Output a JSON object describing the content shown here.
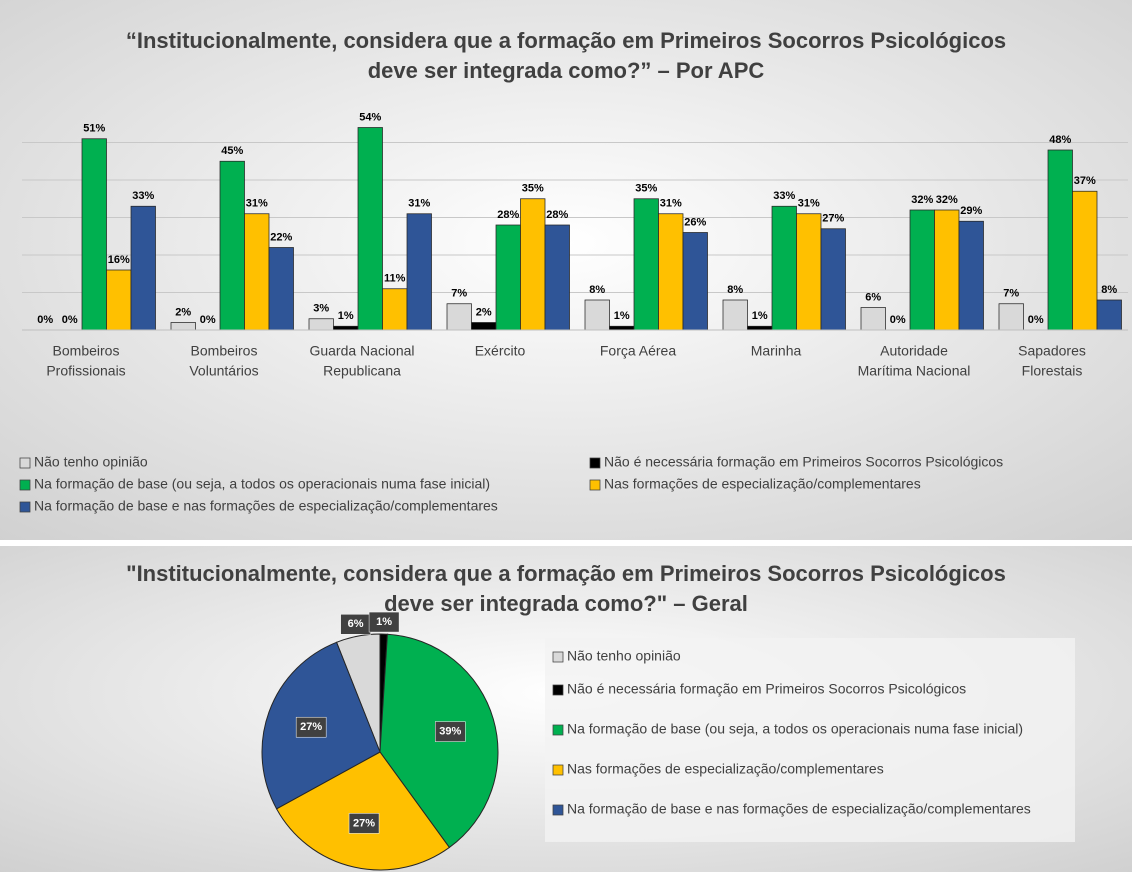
{
  "chart_data": [
    {
      "type": "bar",
      "title": [
        "“Institucionalmente, considera que a formação em Primeiros Socorros Psicológicos",
        "deve ser integrada como?” – Por APC"
      ],
      "categories": [
        [
          "Bombeiros",
          "Profissionais"
        ],
        [
          "Bombeiros",
          "Voluntários"
        ],
        [
          "Guarda Nacional",
          "Republicana"
        ],
        [
          "Exército"
        ],
        [
          "Força Aérea"
        ],
        [
          "Marinha"
        ],
        [
          "Autoridade",
          "Marítima Nacional"
        ],
        [
          "Sapadores",
          "Florestais"
        ]
      ],
      "series": [
        {
          "name": "Não tenho opinião",
          "color": "#d9d9d9",
          "values": [
            0,
            2,
            3,
            7,
            8,
            8,
            6,
            7
          ],
          "value_labels": [
            "0%",
            "2%",
            "3%",
            "7%",
            "8%",
            "8%",
            "6%",
            "7%"
          ]
        },
        {
          "name": "Não é necessária formação em Primeiros Socorros Psicológicos",
          "color": "#000000",
          "values": [
            0,
            0,
            1,
            2,
            1,
            1,
            0,
            0
          ],
          "value_labels": [
            "0%",
            "0%",
            "1%",
            "2%",
            "1%",
            "1%",
            "0%",
            "0%"
          ]
        },
        {
          "name": "Na formação de base (ou seja, a todos os operacionais numa fase inicial)",
          "color": "#00b050",
          "values": [
            51,
            45,
            54,
            28,
            35,
            33,
            32,
            48
          ],
          "value_labels": [
            "51%",
            "45%",
            "54%",
            "28%",
            "35%",
            "33%",
            "32%",
            "48%"
          ]
        },
        {
          "name": "Nas formações de especialização/complementares",
          "color": "#ffc000",
          "values": [
            16,
            31,
            11,
            35,
            31,
            31,
            32,
            37
          ],
          "value_labels": [
            "16%",
            "31%",
            "11%",
            "35%",
            "31%",
            "31%",
            "32%",
            "37%"
          ]
        },
        {
          "name": "Na formação de base e nas formações de especialização/complementares",
          "color": "#2f5597",
          "values": [
            33,
            22,
            31,
            28,
            26,
            27,
            29,
            8
          ],
          "value_labels": [
            "33%",
            "22%",
            "31%",
            "28%",
            "26%",
            "27%",
            "29%",
            "8%"
          ]
        }
      ],
      "ylim": [
        0,
        60
      ],
      "yticks": [
        0,
        10,
        20,
        30,
        40,
        50
      ],
      "grid": true,
      "legend": "bottom"
    },
    {
      "type": "pie",
      "title": [
        "\"Institucionalmente, considera que a formação em Primeiros Socorros Psicológicos",
        "deve ser integrada como?\" – Geral"
      ],
      "categories": [
        "Não tenho opinião",
        "Não é necessária formação em Primeiros Socorros Psicológicos",
        "Na formação de base (ou seja, a todos os operacionais numa fase inicial)",
        "Nas formações de especialização/complementares",
        "Na formação de base e nas formações de especialização/complementares"
      ],
      "values": [
        6,
        1,
        39,
        27,
        27
      ],
      "value_labels": [
        "6%",
        "1%",
        "39%",
        "27%",
        "27%"
      ],
      "colors": [
        "#d9d9d9",
        "#000000",
        "#00b050",
        "#ffc000",
        "#2f5597"
      ],
      "legend": "right"
    }
  ]
}
